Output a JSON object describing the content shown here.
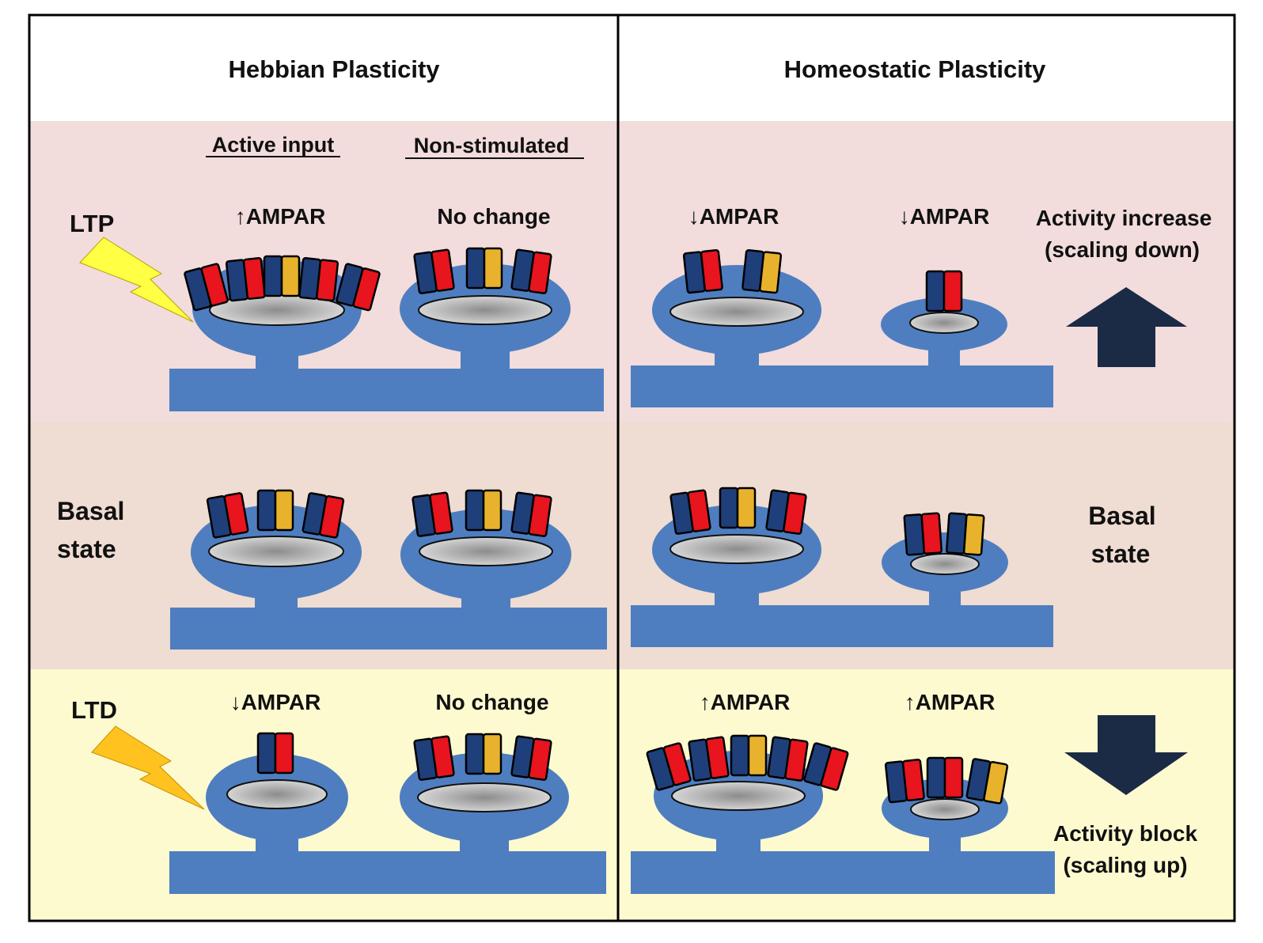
{
  "colors": {
    "ltp_band": "#f2dcdc",
    "basal_band": "#efdcd2",
    "ltd_band": "#fefad0",
    "dendrite": "#4e7ec0",
    "receptor_blue": "#1f3f7a",
    "receptor_red": "#e8141e",
    "receptor_yellow": "#e8b22c",
    "arrow": "#1b2a45",
    "ltp_bolt": "#ffff44",
    "ltd_bolt": "#ffc21e"
  },
  "columns": {
    "hebbian": {
      "title": "Hebbian Plasticity"
    },
    "homeostatic": {
      "title": "Homeostatic Plasticity"
    }
  },
  "headers": {
    "active": "Active input",
    "nonstim": "Non-stimulated"
  },
  "rows": {
    "ltp": {
      "label": "LTP",
      "heb_active": "↑AMPAR",
      "heb_nonstim": "No change",
      "hom_left": "↓AMPAR",
      "hom_right": "↓AMPAR",
      "side_line1": "Activity increase",
      "side_line2": "(scaling down)",
      "arrow_icon": "up-arrow-icon"
    },
    "basal": {
      "label_line1": "Basal",
      "label_line2": "state",
      "right_line1": "Basal",
      "right_line2": "state"
    },
    "ltd": {
      "label": "LTD",
      "heb_active": "↓AMPAR",
      "heb_nonstim": "No change",
      "hom_left": "↑AMPAR",
      "hom_right": "↑AMPAR",
      "side_line1": "Activity block",
      "side_line2": "(scaling up)",
      "arrow_icon": "down-arrow-icon"
    }
  }
}
